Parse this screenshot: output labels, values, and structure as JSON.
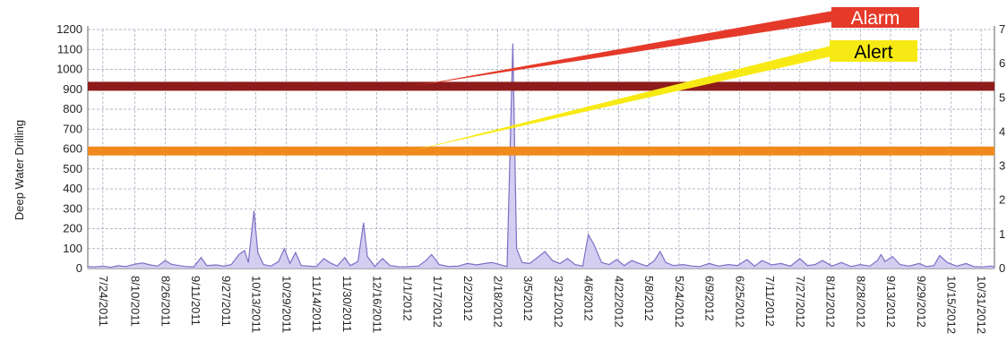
{
  "colors": {
    "series_line": "#7c6fc4",
    "series_fill": "#cdc6ee",
    "alarm_band": "#8e1b1b",
    "alert_band": "#f08a1c",
    "alarm_tag": "#e53a2a",
    "alert_tag": "#f7ea14",
    "grid": "#9aa4b6"
  },
  "chart_data": {
    "type": "area",
    "title": "",
    "ylabel": "Deep Water Drilling",
    "xlabel": "",
    "ylim": [
      0,
      1200
    ],
    "y_ticks": [
      "0",
      "100",
      "200",
      "300",
      "400",
      "500",
      "600",
      "700",
      "800",
      "900",
      "1000",
      "1100",
      "1200"
    ],
    "y2_ticks": [
      "0",
      "1",
      "2",
      "3",
      "4",
      "5",
      "6",
      "7"
    ],
    "xlim": [
      "2011-07-16",
      "2012-11-07"
    ],
    "x_tick_labels": [
      "7/24/2011",
      "8/10/2011",
      "8/26/2011",
      "9/11/2011",
      "9/27/2011",
      "10/13/2011",
      "10/29/2011",
      "11/14/2011",
      "11/30/2011",
      "12/16/2011",
      "1/1/2012",
      "1/17/2012",
      "2/2/2012",
      "2/18/2012",
      "3/5/2012",
      "3/21/2012",
      "4/6/2012",
      "4/22/2012",
      "5/8/2012",
      "5/24/2012",
      "6/9/2012",
      "6/25/2012",
      "7/11/2012",
      "7/27/2012",
      "8/12/2012",
      "8/28/2012",
      "9/13/2012",
      "9/29/2012",
      "10/15/2012",
      "10/31/2012"
    ],
    "grid": true,
    "thresholds": [
      {
        "label": "Alarm",
        "value": 915
      },
      {
        "label": "Alert",
        "value": 590
      }
    ],
    "series": [
      {
        "points": [
          [
            "2011-07-16",
            10
          ],
          [
            "2011-07-20",
            8
          ],
          [
            "2011-07-24",
            12
          ],
          [
            "2011-07-28",
            6
          ],
          [
            "2011-08-01",
            14
          ],
          [
            "2011-08-05",
            10
          ],
          [
            "2011-08-10",
            22
          ],
          [
            "2011-08-14",
            28
          ],
          [
            "2011-08-18",
            18
          ],
          [
            "2011-08-22",
            12
          ],
          [
            "2011-08-26",
            40
          ],
          [
            "2011-08-29",
            22
          ],
          [
            "2011-09-02",
            15
          ],
          [
            "2011-09-06",
            10
          ],
          [
            "2011-09-10",
            8
          ],
          [
            "2011-09-14",
            55
          ],
          [
            "2011-09-17",
            15
          ],
          [
            "2011-09-22",
            18
          ],
          [
            "2011-09-26",
            12
          ],
          [
            "2011-09-30",
            20
          ],
          [
            "2011-10-04",
            70
          ],
          [
            "2011-10-07",
            90
          ],
          [
            "2011-10-09",
            30
          ],
          [
            "2011-10-12",
            290
          ],
          [
            "2011-10-14",
            80
          ],
          [
            "2011-10-17",
            20
          ],
          [
            "2011-10-21",
            12
          ],
          [
            "2011-10-25",
            35
          ],
          [
            "2011-10-28",
            100
          ],
          [
            "2011-10-31",
            25
          ],
          [
            "2011-11-03",
            80
          ],
          [
            "2011-11-06",
            15
          ],
          [
            "2011-11-10",
            12
          ],
          [
            "2011-11-14",
            10
          ],
          [
            "2011-11-18",
            50
          ],
          [
            "2011-11-21",
            30
          ],
          [
            "2011-11-25",
            12
          ],
          [
            "2011-11-29",
            55
          ],
          [
            "2011-12-02",
            15
          ],
          [
            "2011-12-06",
            35
          ],
          [
            "2011-12-09",
            230
          ],
          [
            "2011-12-11",
            60
          ],
          [
            "2011-12-15",
            10
          ],
          [
            "2011-12-19",
            50
          ],
          [
            "2011-12-23",
            15
          ],
          [
            "2011-12-28",
            8
          ],
          [
            "2012-01-02",
            10
          ],
          [
            "2012-01-07",
            12
          ],
          [
            "2012-01-11",
            40
          ],
          [
            "2012-01-14",
            70
          ],
          [
            "2012-01-18",
            20
          ],
          [
            "2012-01-23",
            10
          ],
          [
            "2012-01-28",
            12
          ],
          [
            "2012-02-02",
            25
          ],
          [
            "2012-02-07",
            18
          ],
          [
            "2012-02-11",
            25
          ],
          [
            "2012-02-15",
            30
          ],
          [
            "2012-02-19",
            20
          ],
          [
            "2012-02-23",
            10
          ],
          [
            "2012-02-26",
            1130
          ],
          [
            "2012-02-28",
            100
          ],
          [
            "2012-03-02",
            30
          ],
          [
            "2012-03-06",
            25
          ],
          [
            "2012-03-10",
            55
          ],
          [
            "2012-03-14",
            85
          ],
          [
            "2012-03-18",
            40
          ],
          [
            "2012-03-22",
            25
          ],
          [
            "2012-03-26",
            50
          ],
          [
            "2012-03-30",
            20
          ],
          [
            "2012-04-03",
            12
          ],
          [
            "2012-04-06",
            170
          ],
          [
            "2012-04-09",
            120
          ],
          [
            "2012-04-13",
            30
          ],
          [
            "2012-04-17",
            20
          ],
          [
            "2012-04-21",
            45
          ],
          [
            "2012-04-25",
            15
          ],
          [
            "2012-04-29",
            40
          ],
          [
            "2012-05-03",
            25
          ],
          [
            "2012-05-07",
            12
          ],
          [
            "2012-05-11",
            40
          ],
          [
            "2012-05-14",
            85
          ],
          [
            "2012-05-17",
            30
          ],
          [
            "2012-05-21",
            15
          ],
          [
            "2012-05-26",
            20
          ],
          [
            "2012-05-31",
            12
          ],
          [
            "2012-06-04",
            10
          ],
          [
            "2012-06-09",
            25
          ],
          [
            "2012-06-14",
            12
          ],
          [
            "2012-06-19",
            20
          ],
          [
            "2012-06-24",
            15
          ],
          [
            "2012-06-29",
            45
          ],
          [
            "2012-07-03",
            12
          ],
          [
            "2012-07-07",
            40
          ],
          [
            "2012-07-12",
            18
          ],
          [
            "2012-07-17",
            25
          ],
          [
            "2012-07-22",
            12
          ],
          [
            "2012-07-27",
            50
          ],
          [
            "2012-07-31",
            15
          ],
          [
            "2012-08-04",
            20
          ],
          [
            "2012-08-08",
            40
          ],
          [
            "2012-08-13",
            12
          ],
          [
            "2012-08-18",
            30
          ],
          [
            "2012-08-23",
            10
          ],
          [
            "2012-08-28",
            20
          ],
          [
            "2012-09-02",
            12
          ],
          [
            "2012-09-06",
            40
          ],
          [
            "2012-09-08",
            70
          ],
          [
            "2012-09-10",
            35
          ],
          [
            "2012-09-14",
            60
          ],
          [
            "2012-09-18",
            20
          ],
          [
            "2012-09-23",
            12
          ],
          [
            "2012-09-28",
            25
          ],
          [
            "2012-10-02",
            10
          ],
          [
            "2012-10-06",
            15
          ],
          [
            "2012-10-09",
            65
          ],
          [
            "2012-10-13",
            30
          ],
          [
            "2012-10-18",
            12
          ],
          [
            "2012-10-23",
            25
          ],
          [
            "2012-10-27",
            10
          ],
          [
            "2012-11-01",
            8
          ],
          [
            "2012-11-05",
            12
          ],
          [
            "2012-11-07",
            8
          ]
        ]
      }
    ]
  }
}
